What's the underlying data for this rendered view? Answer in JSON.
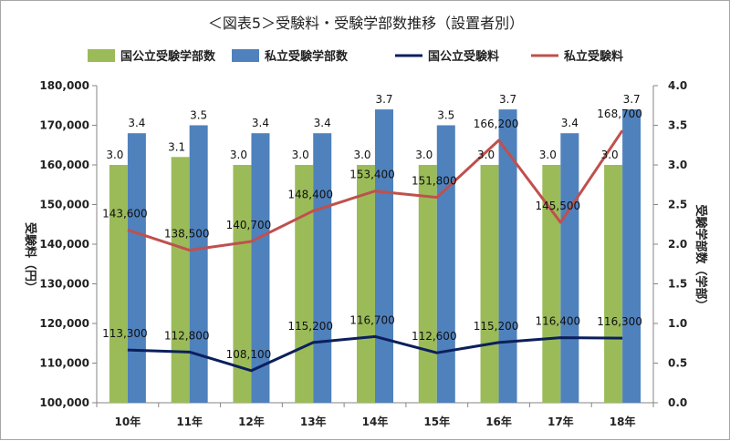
{
  "chart_data": {
    "type": "bar",
    "title": "＜図表5＞受験料・受験学部数推移（設置者別）",
    "categories": [
      "10年",
      "11年",
      "12年",
      "13年",
      "14年",
      "15年",
      "16年",
      "17年",
      "18年"
    ],
    "series": [
      {
        "name": "国公立受験学部数",
        "type": "bar",
        "axis": "right",
        "color": "#9bbb59",
        "values": [
          3.0,
          3.1,
          3.0,
          3.0,
          3.0,
          3.0,
          3.0,
          3.0,
          3.0
        ],
        "labels": [
          "3.0",
          "3.1",
          "3.0",
          "3.0",
          "3.0",
          "3.0",
          "3.0",
          "3.0",
          "3.0"
        ]
      },
      {
        "name": "私立受験学部数",
        "type": "bar",
        "axis": "right",
        "color": "#4f81bd",
        "values": [
          3.4,
          3.5,
          3.4,
          3.4,
          3.7,
          3.5,
          3.7,
          3.4,
          3.7
        ],
        "labels": [
          "3.4",
          "3.5",
          "3.4",
          "3.4",
          "3.7",
          "3.5",
          "3.7",
          "3.4",
          "3.7"
        ]
      },
      {
        "name": "国公立受験料",
        "type": "line",
        "axis": "left",
        "color": "#0b1f5c",
        "values": [
          113300,
          112800,
          108100,
          115200,
          116700,
          112600,
          115200,
          116400,
          116300
        ],
        "labels": [
          "113,300",
          "112,800",
          "108,100",
          "115,200",
          "116,700",
          "112,600",
          "115,200",
          "116,400",
          "116,300"
        ]
      },
      {
        "name": "私立受験料",
        "type": "line",
        "axis": "left",
        "color": "#c0504d",
        "values": [
          143600,
          138500,
          140700,
          148400,
          153400,
          151800,
          166200,
          145500,
          168700
        ],
        "labels": [
          "143,600",
          "138,500",
          "140,700",
          "148,400",
          "153,400",
          "151,800",
          "166,200",
          "145,500",
          "168,700"
        ]
      }
    ],
    "y_left": {
      "label": "受験料（円）",
      "ylim": [
        100000,
        180000
      ],
      "ticks": [
        "100,000",
        "110,000",
        "120,000",
        "130,000",
        "140,000",
        "150,000",
        "160,000",
        "170,000",
        "180,000"
      ]
    },
    "y_right": {
      "label": "受験学部数（学部）",
      "ylim": [
        0,
        4
      ],
      "ticks": [
        "0.0",
        "0.5",
        "1.0",
        "1.5",
        "2.0",
        "2.5",
        "3.0",
        "3.5",
        "4.0"
      ]
    },
    "grid": false,
    "legend_position": "top"
  }
}
